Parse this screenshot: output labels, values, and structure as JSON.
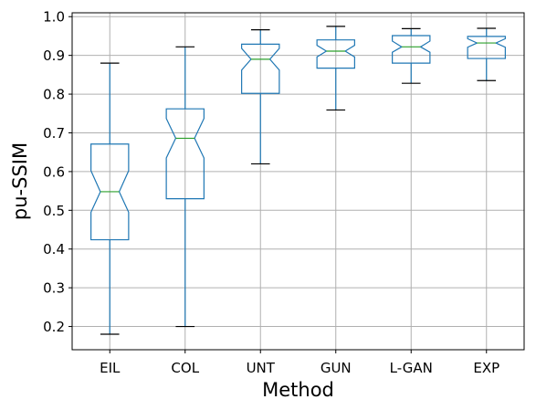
{
  "chart_data": {
    "type": "boxplot",
    "notched": true,
    "title": "",
    "xlabel": "Method",
    "ylabel": "pu-SSIM",
    "ylim": [
      0.14,
      1.01
    ],
    "yticks": [
      "0.2",
      "0.3",
      "0.4",
      "0.5",
      "0.6",
      "0.7",
      "0.8",
      "0.9",
      "1.0"
    ],
    "grid": true,
    "colors": {
      "box": "#1f77b4",
      "median": "#2ca02c",
      "whisker_cap": "#000000",
      "grid": "#b0b0b0"
    },
    "categories": [
      "EIL",
      "COL",
      "UNT",
      "GUN",
      "L-GAN",
      "EXP"
    ],
    "boxes": [
      {
        "min": 0.18,
        "q1": 0.424,
        "median": 0.548,
        "q3": 0.671,
        "max": 0.88,
        "notch_low": 0.495,
        "notch_high": 0.602
      },
      {
        "min": 0.2,
        "q1": 0.53,
        "median": 0.686,
        "q3": 0.762,
        "max": 0.922,
        "notch_low": 0.635,
        "notch_high": 0.737
      },
      {
        "min": 0.62,
        "q1": 0.802,
        "median": 0.89,
        "q3": 0.929,
        "max": 0.966,
        "notch_low": 0.862,
        "notch_high": 0.918
      },
      {
        "min": 0.759,
        "q1": 0.867,
        "median": 0.911,
        "q3": 0.94,
        "max": 0.975,
        "notch_low": 0.896,
        "notch_high": 0.926
      },
      {
        "min": 0.828,
        "q1": 0.88,
        "median": 0.922,
        "q3": 0.951,
        "max": 0.969,
        "notch_low": 0.908,
        "notch_high": 0.937
      },
      {
        "min": 0.835,
        "q1": 0.892,
        "median": 0.932,
        "q3": 0.949,
        "max": 0.97,
        "notch_low": 0.921,
        "notch_high": 0.943
      }
    ]
  }
}
